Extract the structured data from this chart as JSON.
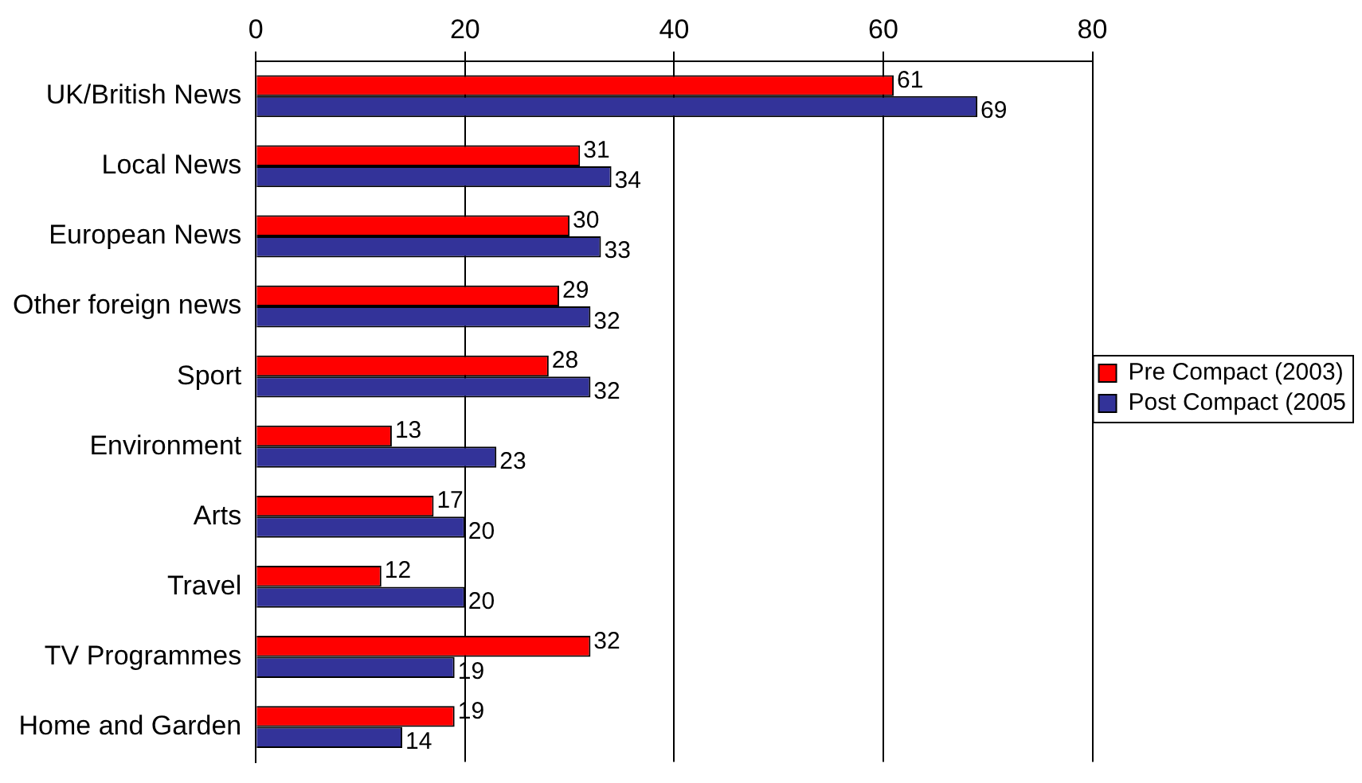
{
  "chart_data": {
    "type": "bar",
    "orientation": "horizontal",
    "categories": [
      "UK/British News",
      "Local News",
      "European News",
      "Other foreign news",
      "Sport",
      "Environment",
      "Arts",
      "Travel",
      "TV Programmes",
      "Home and Garden"
    ],
    "series": [
      {
        "name": "Pre Compact (2003)",
        "color": "#ff0000",
        "values": [
          61,
          31,
          30,
          29,
          28,
          13,
          17,
          12,
          32,
          19
        ]
      },
      {
        "name": "Post Compact (2005",
        "color": "#333399",
        "values": [
          69,
          34,
          33,
          32,
          32,
          23,
          20,
          20,
          19,
          14
        ]
      }
    ],
    "xlim": [
      0,
      80
    ],
    "xticks": [
      0,
      20,
      40,
      60,
      80
    ],
    "grid": "x",
    "legend": "right",
    "data_labels": true
  }
}
